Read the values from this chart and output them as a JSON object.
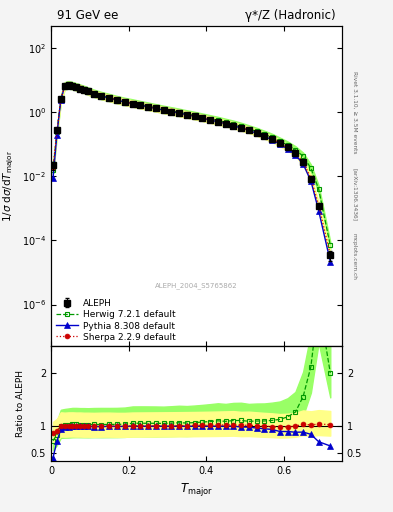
{
  "title_left": "91 GeV ee",
  "title_right": "γ*/Z (Hadronic)",
  "ylabel_main": "1/σ dσ/dT_major",
  "ylabel_ratio": "Ratio to ALEPH",
  "xlabel": "T_{major}",
  "rivet_label": "Rivet 3.1.10, ≥ 3.5M events",
  "arxiv_label": "[arXiv:1306.3436]",
  "mcplots_label": "mcplots.cern.ch",
  "dataset_label": "ALEPH_2004_S5765862",
  "background_color": "#f4f4f4",
  "plot_bg_color": "#ffffff",
  "aleph_color": "#000000",
  "herwig_color": "#009900",
  "pythia_color": "#0000cc",
  "sherpa_color": "#cc0000",
  "herwig_band_color": "#99ff66",
  "sherpa_band_color": "#ffff88",
  "aleph_label": "ALEPH",
  "herwig_label": "Herwig 7.2.1 default",
  "pythia_label": "Pythia 8.308 default",
  "sherpa_label": "Sherpa 2.2.9 default",
  "aleph_x": [
    0.005,
    0.015,
    0.025,
    0.035,
    0.045,
    0.055,
    0.065,
    0.075,
    0.085,
    0.095,
    0.11,
    0.13,
    0.15,
    0.17,
    0.19,
    0.21,
    0.23,
    0.25,
    0.27,
    0.29,
    0.31,
    0.33,
    0.35,
    0.37,
    0.39,
    0.41,
    0.43,
    0.45,
    0.47,
    0.49,
    0.51,
    0.53,
    0.55,
    0.57,
    0.59,
    0.61,
    0.63,
    0.65,
    0.67,
    0.69,
    0.72
  ],
  "aleph_y": [
    0.022,
    0.28,
    2.5,
    6.5,
    7.0,
    6.5,
    5.95,
    5.45,
    4.95,
    4.45,
    3.78,
    3.18,
    2.76,
    2.38,
    2.08,
    1.84,
    1.63,
    1.46,
    1.3,
    1.16,
    1.04,
    0.93,
    0.83,
    0.74,
    0.65,
    0.57,
    0.5,
    0.44,
    0.38,
    0.325,
    0.275,
    0.228,
    0.185,
    0.147,
    0.11,
    0.08,
    0.053,
    0.027,
    0.0085,
    0.0012,
    3.5e-05
  ],
  "aleph_yerr_lo": [
    0.006,
    0.04,
    0.18,
    0.28,
    0.27,
    0.22,
    0.19,
    0.17,
    0.15,
    0.14,
    0.11,
    0.09,
    0.08,
    0.07,
    0.06,
    0.05,
    0.045,
    0.04,
    0.035,
    0.03,
    0.027,
    0.022,
    0.019,
    0.017,
    0.015,
    0.013,
    0.011,
    0.01,
    0.009,
    0.008,
    0.007,
    0.006,
    0.005,
    0.004,
    0.003,
    0.0025,
    0.0018,
    0.0012,
    0.0006,
    0.00015,
    1.2e-05
  ],
  "aleph_yerr_hi": [
    0.006,
    0.04,
    0.18,
    0.28,
    0.27,
    0.22,
    0.19,
    0.17,
    0.15,
    0.14,
    0.11,
    0.09,
    0.08,
    0.07,
    0.06,
    0.05,
    0.045,
    0.04,
    0.035,
    0.03,
    0.027,
    0.022,
    0.019,
    0.017,
    0.015,
    0.013,
    0.011,
    0.01,
    0.009,
    0.008,
    0.007,
    0.006,
    0.005,
    0.004,
    0.003,
    0.0025,
    0.0018,
    0.0012,
    0.0006,
    0.00015,
    1.2e-05
  ],
  "herwig_x": [
    0.005,
    0.015,
    0.025,
    0.035,
    0.045,
    0.055,
    0.065,
    0.075,
    0.085,
    0.095,
    0.11,
    0.13,
    0.15,
    0.17,
    0.19,
    0.21,
    0.23,
    0.25,
    0.27,
    0.29,
    0.31,
    0.33,
    0.35,
    0.37,
    0.39,
    0.41,
    0.43,
    0.45,
    0.47,
    0.49,
    0.51,
    0.53,
    0.55,
    0.57,
    0.59,
    0.61,
    0.63,
    0.65,
    0.67,
    0.69,
    0.72
  ],
  "herwig_y": [
    0.016,
    0.235,
    2.52,
    6.62,
    7.18,
    6.72,
    6.15,
    5.62,
    5.1,
    4.58,
    3.9,
    3.28,
    2.85,
    2.46,
    2.16,
    1.94,
    1.72,
    1.54,
    1.37,
    1.22,
    1.1,
    0.99,
    0.88,
    0.79,
    0.7,
    0.62,
    0.55,
    0.48,
    0.42,
    0.36,
    0.3,
    0.25,
    0.203,
    0.163,
    0.124,
    0.094,
    0.067,
    0.042,
    0.018,
    0.004,
    7e-05
  ],
  "herwig_band_lo": [
    0.012,
    0.18,
    1.95,
    5.1,
    5.5,
    5.15,
    4.72,
    4.32,
    3.92,
    3.52,
    3.0,
    2.52,
    2.19,
    1.89,
    1.66,
    1.49,
    1.32,
    1.18,
    1.05,
    0.94,
    0.845,
    0.76,
    0.676,
    0.607,
    0.538,
    0.477,
    0.423,
    0.369,
    0.323,
    0.277,
    0.231,
    0.192,
    0.156,
    0.125,
    0.095,
    0.072,
    0.0515,
    0.0323,
    0.01385,
    0.00308,
    5.39e-05
  ],
  "herwig_band_hi": [
    0.021,
    0.305,
    3.27,
    8.6,
    9.33,
    8.73,
    7.99,
    7.3,
    6.63,
    5.95,
    5.07,
    4.27,
    3.705,
    3.198,
    2.808,
    2.522,
    2.236,
    2.002,
    1.781,
    1.586,
    1.43,
    1.287,
    1.144,
    1.027,
    0.91,
    0.806,
    0.715,
    0.624,
    0.546,
    0.468,
    0.39,
    0.325,
    0.264,
    0.212,
    0.161,
    0.122,
    0.0871,
    0.0546,
    0.0234,
    0.0052,
    9.11e-05
  ],
  "pythia_x": [
    0.005,
    0.015,
    0.025,
    0.035,
    0.045,
    0.055,
    0.065,
    0.075,
    0.085,
    0.095,
    0.11,
    0.13,
    0.15,
    0.17,
    0.19,
    0.21,
    0.23,
    0.25,
    0.27,
    0.29,
    0.31,
    0.33,
    0.35,
    0.37,
    0.39,
    0.41,
    0.43,
    0.45,
    0.47,
    0.49,
    0.51,
    0.53,
    0.55,
    0.57,
    0.59,
    0.61,
    0.63,
    0.65,
    0.67,
    0.69,
    0.72
  ],
  "pythia_y": [
    0.009,
    0.2,
    2.35,
    6.42,
    6.95,
    6.5,
    5.95,
    5.45,
    4.93,
    4.43,
    3.75,
    3.16,
    2.75,
    2.37,
    2.07,
    1.84,
    1.63,
    1.46,
    1.3,
    1.16,
    1.04,
    0.93,
    0.83,
    0.74,
    0.65,
    0.57,
    0.5,
    0.44,
    0.38,
    0.32,
    0.27,
    0.22,
    0.176,
    0.138,
    0.099,
    0.072,
    0.047,
    0.024,
    0.0072,
    0.00085,
    2.2e-05
  ],
  "sherpa_x": [
    0.005,
    0.015,
    0.025,
    0.035,
    0.045,
    0.055,
    0.065,
    0.075,
    0.085,
    0.095,
    0.11,
    0.13,
    0.15,
    0.17,
    0.19,
    0.21,
    0.23,
    0.25,
    0.27,
    0.29,
    0.31,
    0.33,
    0.35,
    0.37,
    0.39,
    0.41,
    0.43,
    0.45,
    0.47,
    0.49,
    0.51,
    0.53,
    0.55,
    0.57,
    0.59,
    0.61,
    0.63,
    0.65,
    0.67,
    0.69,
    0.72
  ],
  "sherpa_y": [
    0.019,
    0.255,
    2.52,
    6.52,
    7.05,
    6.55,
    5.98,
    5.48,
    4.96,
    4.46,
    3.78,
    3.19,
    2.77,
    2.38,
    2.08,
    1.85,
    1.64,
    1.47,
    1.31,
    1.17,
    1.05,
    0.94,
    0.84,
    0.75,
    0.66,
    0.58,
    0.51,
    0.45,
    0.39,
    0.33,
    0.28,
    0.23,
    0.185,
    0.146,
    0.108,
    0.079,
    0.053,
    0.028,
    0.0087,
    0.00125,
    3.6e-05
  ],
  "sherpa_band_lo": [
    0.0152,
    0.204,
    2.016,
    5.216,
    5.64,
    5.24,
    4.784,
    4.384,
    3.968,
    3.568,
    3.024,
    2.552,
    2.216,
    1.904,
    1.664,
    1.48,
    1.312,
    1.176,
    1.048,
    0.936,
    0.84,
    0.752,
    0.672,
    0.6,
    0.528,
    0.464,
    0.408,
    0.36,
    0.312,
    0.264,
    0.224,
    0.184,
    0.148,
    0.1168,
    0.0864,
    0.0632,
    0.0424,
    0.0224,
    0.00696,
    0.001,
    2.88e-05
  ],
  "sherpa_band_hi": [
    0.0238,
    0.3185,
    3.15,
    8.15,
    8.8125,
    8.1875,
    7.475,
    6.85,
    6.2,
    5.575,
    4.725,
    3.9875,
    3.4625,
    2.975,
    2.6,
    2.3125,
    2.05,
    1.8375,
    1.6375,
    1.4625,
    1.3125,
    1.175,
    1.05,
    0.9375,
    0.825,
    0.725,
    0.6375,
    0.5625,
    0.4875,
    0.4125,
    0.35,
    0.2875,
    0.23125,
    0.1825,
    0.135,
    0.09875,
    0.06625,
    0.035,
    0.010875,
    0.0015625,
    4.5e-05
  ],
  "ylim_main": [
    5e-08,
    500
  ],
  "ylim_ratio": [
    0.35,
    2.5
  ],
  "xlim": [
    0.0,
    0.75
  ],
  "ratio_yticks": [
    0.5,
    1.0,
    2.0
  ],
  "figsize": [
    3.93,
    5.12
  ],
  "dpi": 100
}
